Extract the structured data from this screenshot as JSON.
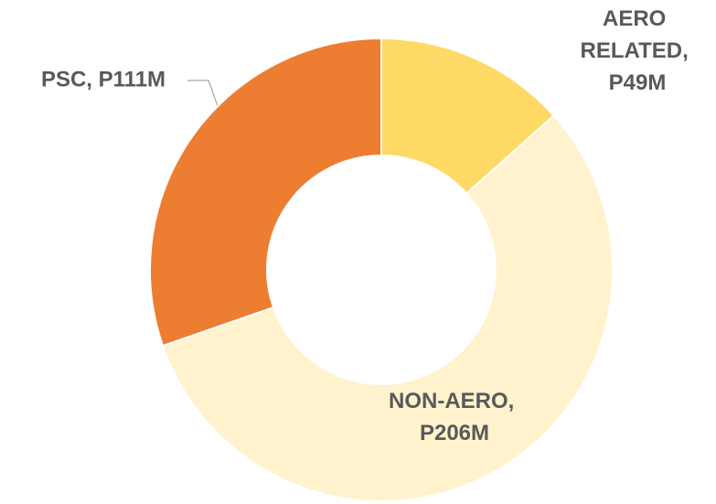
{
  "chart_data": {
    "type": "donut",
    "labels": [
      "AERO RELATED, P49M",
      "NON-AERO, P206M",
      "PSC, P111M"
    ],
    "values": [
      49,
      206,
      111
    ],
    "colors": [
      "#FFD966",
      "#FFF2CC",
      "#ED7D31"
    ]
  }
}
